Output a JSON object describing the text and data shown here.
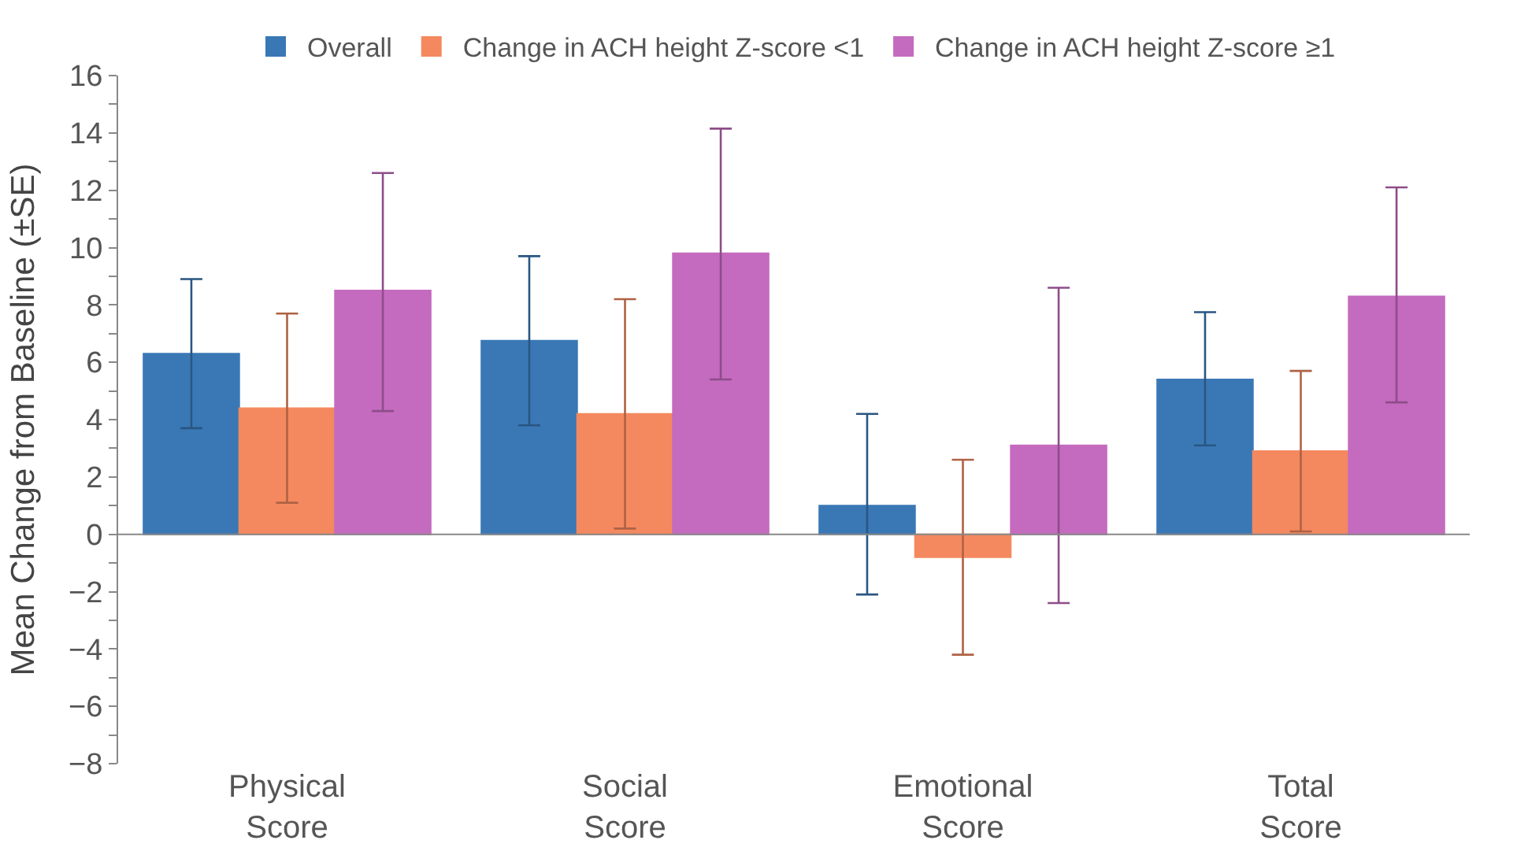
{
  "chart_data": {
    "type": "bar",
    "ylabel": "Mean Change from Baseline (±SE)",
    "categories": [
      "Physical\nScore",
      "Social\nScore",
      "Emotional\nScore",
      "Total\nScore"
    ],
    "series": [
      {
        "name": "Overall",
        "color": "#3a78b5",
        "values": [
          6.3,
          6.75,
          1.0,
          5.4
        ],
        "errors": [
          [
            3.7,
            8.9
          ],
          [
            3.8,
            9.7
          ],
          [
            -2.1,
            4.2
          ],
          [
            3.1,
            7.75
          ]
        ]
      },
      {
        "name": "Change in ACH height Z-score <1",
        "color": "#f4895f",
        "values": [
          4.4,
          4.2,
          -0.8,
          2.9
        ],
        "errors": [
          [
            1.1,
            7.7
          ],
          [
            0.2,
            8.2
          ],
          [
            -4.2,
            2.6
          ],
          [
            0.1,
            5.7
          ]
        ]
      },
      {
        "name": "Change in ACH height Z-score ≥1",
        "color": "#c46bbf",
        "values": [
          8.5,
          9.8,
          3.1,
          8.3
        ],
        "errors": [
          [
            4.3,
            12.6
          ],
          [
            5.4,
            14.15
          ],
          [
            -2.4,
            8.6
          ],
          [
            4.6,
            12.1
          ]
        ]
      }
    ],
    "ylim": [
      -8,
      16
    ],
    "yticks": [
      -8,
      {
        "value": -7,
        "label": null
      },
      -6,
      {
        "value": -5,
        "label": null
      },
      -4,
      {
        "value": -3,
        "label": null
      },
      -2,
      {
        "value": -1,
        "label": null
      },
      0,
      {
        "value": 1,
        "label": null
      },
      2,
      {
        "value": 3,
        "label": null
      },
      4,
      {
        "value": 5,
        "label": null
      },
      6,
      {
        "value": 7,
        "label": null
      },
      8,
      {
        "value": 9,
        "label": null
      },
      10,
      {
        "value": 11,
        "label": null
      },
      12,
      {
        "value": 13,
        "label": null
      },
      14,
      {
        "value": 15,
        "label": null
      },
      16
    ],
    "ref_lines": [
      {
        "axis": "y",
        "value": 0,
        "color": "#888888"
      }
    ],
    "legend": "top"
  }
}
